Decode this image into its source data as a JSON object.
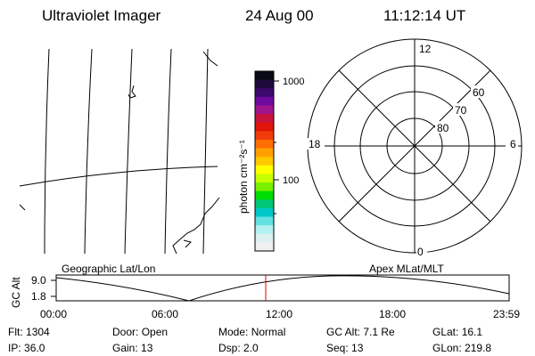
{
  "header": {
    "title": "Ultraviolet Imager",
    "date": "24 Aug 00",
    "time": "11:12:14 UT"
  },
  "colorbar": {
    "axis_label": "photon cm⁻²s⁻¹",
    "ticks": [
      "1000",
      "100"
    ],
    "colors": [
      "#0a0a14",
      "#1e0a3c",
      "#3c0a6e",
      "#6e0aa0",
      "#a0148c",
      "#c8143c",
      "#e1140a",
      "#f03c0a",
      "#ff6e00",
      "#ffa000",
      "#ffc800",
      "#ffff00",
      "#c8ff00",
      "#78f000",
      "#00dc00",
      "#00c878",
      "#00c8c8",
      "#64e1e1",
      "#b4f0f0",
      "#dcf0f0",
      "#f0f0f0"
    ]
  },
  "polar_plot": {
    "latitude_labels": [
      "80",
      "70",
      "60"
    ],
    "mlt_labels": {
      "top": "12",
      "left": "18",
      "right": "6",
      "bottom": "0"
    }
  },
  "timeline": {
    "left_label": "Geographic Lat/Lon",
    "right_label": "Apex MLat/MLT",
    "y_axis_title": "GC Alt",
    "y_ticks": [
      "9.0",
      "1.8"
    ],
    "x_ticks": [
      "00:00",
      "06:00",
      "12:00",
      "18:00",
      "23:59"
    ],
    "current_marker_time": "11:12:14",
    "marker_color": "#e00000"
  },
  "status": {
    "row1": [
      {
        "label": "Flt:",
        "value": "1304"
      },
      {
        "label": "Door:",
        "value": "Open"
      },
      {
        "label": "Mode:",
        "value": "Normal"
      },
      {
        "label": "GC Alt:",
        "value": "7.1 Re"
      },
      {
        "label": "GLat:",
        "value": "16.1"
      }
    ],
    "row2": [
      {
        "label": "IP:",
        "value": "36.0"
      },
      {
        "label": "Gain:",
        "value": "13"
      },
      {
        "label": "Dsp:",
        "value": "2.0"
      },
      {
        "label": "Seq:",
        "value": "13"
      },
      {
        "label": "GLon:",
        "value": "219.8"
      }
    ]
  }
}
